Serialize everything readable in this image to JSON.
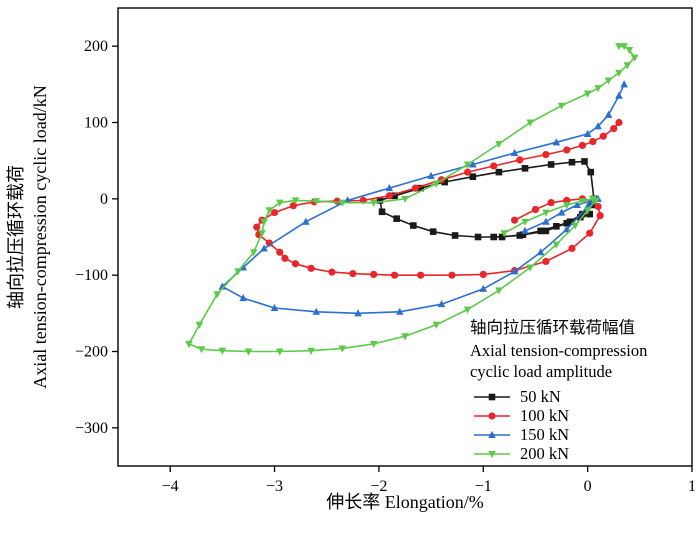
{
  "chart_data": {
    "type": "line",
    "xlabel": "伸长率 Elongation/%",
    "ylabel": "轴向拉压循环载荷 Axial tension-compression cyclic load/kN",
    "ylabel_cn": "轴向拉压循环载荷",
    "ylabel_en": "Axial tension-compression cyclic load/kN",
    "xlim": [
      -4.5,
      1
    ],
    "ylim": [
      -350,
      250
    ],
    "xticks": [
      -4,
      -3,
      -2,
      -1,
      0,
      1
    ],
    "yticks": [
      200,
      100,
      0,
      -100,
      -200,
      -300
    ],
    "tick_labels_x": [
      "−4",
      "−3",
      "−2",
      "−1",
      "0",
      "1"
    ],
    "tick_labels_y": [
      "200",
      "100",
      "0",
      "−100",
      "−200",
      "−300"
    ],
    "legend": {
      "title_cn": "轴向拉压循环载荷幅值",
      "title_en_line1": "Axial tension-compression",
      "title_en_line2": "cyclic load amplitude",
      "placement": "bottom-right"
    },
    "series": [
      {
        "name": "50 kN",
        "color": "#1a1a1a",
        "marker": "square",
        "x": [
          0.02,
          -0.07,
          -0.17,
          -0.3,
          -0.45,
          -0.62,
          -0.82,
          -1.05,
          -1.27,
          -1.48,
          -1.67,
          -1.83,
          -1.97,
          -1.99,
          -1.85,
          -1.6,
          -1.37,
          -1.1,
          -0.85,
          -0.6,
          -0.35,
          -0.15,
          -0.03,
          0.03,
          0.06,
          0.04,
          -0.05,
          -0.2,
          -0.4,
          -0.65,
          -0.9
        ],
        "y": [
          -20,
          -24,
          -30,
          -36,
          -42,
          -47,
          -50,
          -50,
          -48,
          -43,
          -35,
          -26,
          -17,
          -2,
          4,
          14,
          22,
          29,
          35,
          40,
          45,
          48,
          49,
          35,
          0,
          -8,
          -20,
          -32,
          -42,
          -48,
          -50
        ]
      },
      {
        "name": "100 kN",
        "color": "#e8262b",
        "marker": "circle",
        "x": [
          0.3,
          0.25,
          0.15,
          0.05,
          -0.05,
          -0.2,
          -0.4,
          -0.65,
          -0.9,
          -1.15,
          -1.4,
          -1.65,
          -1.9,
          -2.15,
          -2.4,
          -2.62,
          -2.82,
          -3.0,
          -3.12,
          -3.17,
          -3.15,
          -3.05,
          -2.95,
          -2.9,
          -2.8,
          -2.65,
          -2.45,
          -2.25,
          -2.05,
          -1.85,
          -1.6,
          -1.3,
          -1.0,
          -0.7,
          -0.4,
          -0.15,
          0.02,
          0.12,
          0.1,
          0.05,
          -0.05,
          -0.2,
          -0.35,
          -0.5,
          -0.7
        ],
        "y": [
          100,
          92,
          82,
          75,
          70,
          64,
          58,
          51,
          43,
          35,
          25,
          14,
          4,
          -2,
          -3,
          -4,
          -9,
          -18,
          -28,
          -37,
          -47,
          -58,
          -70,
          -78,
          -85,
          -91,
          -96,
          -98,
          -99,
          -100,
          -100,
          -100,
          -99,
          -94,
          -82,
          -65,
          -45,
          -22,
          -10,
          -3,
          0,
          -2,
          -5,
          -14,
          -28
        ]
      },
      {
        "name": "150 kN",
        "color": "#2b6fd1",
        "marker": "triangle-up",
        "x": [
          0.35,
          0.3,
          0.2,
          0.1,
          0.0,
          -0.3,
          -0.7,
          -1.1,
          -1.5,
          -1.9,
          -2.3,
          -2.7,
          -3.1,
          -3.3,
          -3.5,
          -3.3,
          -3.0,
          -2.6,
          -2.2,
          -1.8,
          -1.4,
          -1.0,
          -0.7,
          -0.45,
          -0.2,
          0.0,
          0.1,
          0.05,
          -0.1,
          -0.25,
          -0.4,
          -0.6
        ],
        "y": [
          150,
          135,
          110,
          95,
          85,
          74,
          60,
          45,
          30,
          14,
          -2,
          -30,
          -65,
          -90,
          -115,
          -130,
          -143,
          -148,
          -150,
          -148,
          -138,
          -118,
          -95,
          -70,
          -40,
          -10,
          0,
          -2,
          -8,
          -18,
          -30,
          -42
        ]
      },
      {
        "name": "200 kN",
        "color": "#5dc94a",
        "marker": "triangle-down",
        "x": [
          0.3,
          0.35,
          0.4,
          0.45,
          0.38,
          0.3,
          0.2,
          0.1,
          0.0,
          -0.25,
          -0.55,
          -0.85,
          -1.15,
          -1.45,
          -1.75,
          -2.05,
          -2.35,
          -2.6,
          -2.8,
          -2.95,
          -3.05,
          -3.1,
          -3.12,
          -3.2,
          -3.35,
          -3.55,
          -3.72,
          -3.82,
          -3.7,
          -3.5,
          -3.25,
          -2.95,
          -2.65,
          -2.35,
          -2.05,
          -1.75,
          -1.45,
          -1.15,
          -0.85,
          -0.55,
          -0.3,
          -0.12,
          0.0,
          0.08,
          0.05,
          -0.05,
          -0.2,
          -0.4,
          -0.6,
          -0.8
        ],
        "y": [
          200,
          200,
          195,
          185,
          175,
          165,
          155,
          145,
          138,
          122,
          100,
          72,
          45,
          20,
          0,
          -5,
          -5,
          -3,
          -2,
          -5,
          -15,
          -30,
          -45,
          -70,
          -95,
          -125,
          -165,
          -190,
          -197,
          -199,
          -200,
          -200,
          -199,
          -196,
          -190,
          -180,
          -165,
          -145,
          -120,
          -90,
          -60,
          -35,
          -15,
          -2,
          0,
          -3,
          -8,
          -18,
          -30,
          -45
        ]
      }
    ]
  }
}
